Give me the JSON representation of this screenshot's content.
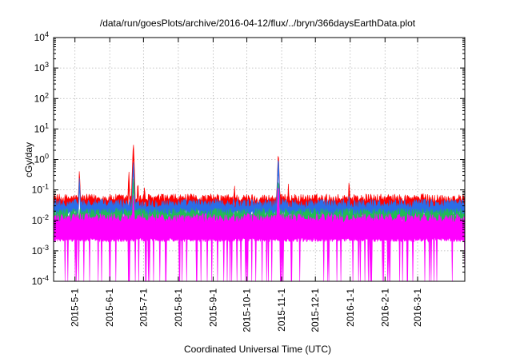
{
  "chart_data": {
    "type": "line",
    "title": "/data/run/goesPlots/archive/2016-04-12/flux/../bryn/366daysEarthData.plot",
    "xlabel": "Coordinated Universal Time (UTC)",
    "ylabel": "cGy/day",
    "y_scale": "log",
    "ylim": [
      0.0001,
      10000
    ],
    "xlim": [
      "2015-04-12",
      "2016-04-12"
    ],
    "grid": true,
    "legend": "none",
    "y_ticks": [
      {
        "exp": -4,
        "base": "10",
        "sup": "-4"
      },
      {
        "exp": -3,
        "base": "10",
        "sup": "-3"
      },
      {
        "exp": -2,
        "base": "10",
        "sup": "-2"
      },
      {
        "exp": -1,
        "base": "10",
        "sup": "-1"
      },
      {
        "exp": 0,
        "base": "10",
        "sup": "0"
      },
      {
        "exp": 1,
        "base": "10",
        "sup": "1"
      },
      {
        "exp": 2,
        "base": "10",
        "sup": "2"
      },
      {
        "exp": 3,
        "base": "10",
        "sup": "3"
      },
      {
        "exp": 4,
        "base": "10",
        "sup": "4"
      }
    ],
    "x_ticks": [
      {
        "label": "2015-5-1",
        "date": "2015-05-01"
      },
      {
        "label": "2015-6-1",
        "date": "2015-06-01"
      },
      {
        "label": "2015-7-1",
        "date": "2015-07-01"
      },
      {
        "label": "2015-8-1",
        "date": "2015-08-01"
      },
      {
        "label": "2015-9-1",
        "date": "2015-09-01"
      },
      {
        "label": "2015-10-1",
        "date": "2015-10-01"
      },
      {
        "label": "2015-11-1",
        "date": "2015-11-01"
      },
      {
        "label": "2015-12-1",
        "date": "2015-12-01"
      },
      {
        "label": "2016-1-1",
        "date": "2016-01-01"
      },
      {
        "label": "2016-2-1",
        "date": "2016-02-01"
      },
      {
        "label": "2016-3-1",
        "date": "2016-03-01"
      }
    ],
    "series": [
      {
        "color": "#ff0000",
        "baseline": 0.052,
        "points": [
          [
            "2015-04-25",
            0.1
          ],
          [
            "2015-05-05",
            0.55
          ],
          [
            "2015-06-18",
            0.5
          ],
          [
            "2015-06-22",
            4.5
          ],
          [
            "2015-06-26",
            0.25
          ],
          [
            "2015-07-02",
            0.18
          ],
          [
            "2015-09-20",
            0.19
          ],
          [
            "2015-10-29",
            2.2
          ],
          [
            "2015-11-07",
            0.19
          ],
          [
            "2015-12-31",
            0.27
          ],
          [
            "2016-03-06",
            0.1
          ]
        ]
      },
      {
        "color": "#2a6ee8",
        "baseline": 0.036,
        "points": [
          [
            "2015-05-05",
            0.33
          ],
          [
            "2015-06-22",
            1.2
          ],
          [
            "2015-10-29",
            1.6
          ],
          [
            "2015-12-31",
            0.1
          ]
        ]
      },
      {
        "color": "#22bb55",
        "baseline": 0.018,
        "points": [
          [
            "2015-06-22",
            0.35
          ],
          [
            "2015-10-29",
            0.3
          ]
        ]
      },
      {
        "color": "#ff00ff",
        "baseline": 0.012,
        "points": [
          [
            "2015-06-22",
            0.1
          ],
          [
            "2015-10-29",
            0.2
          ]
        ]
      }
    ]
  }
}
